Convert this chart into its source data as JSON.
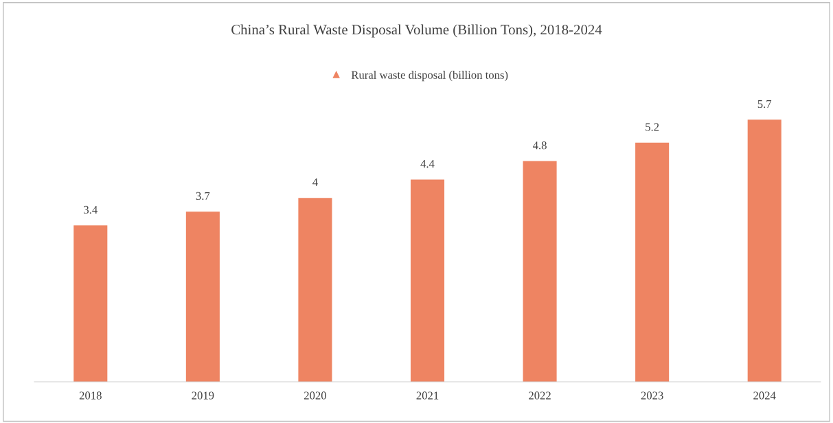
{
  "chart_data": {
    "type": "bar",
    "title": "China’s Rural Waste Disposal Volume (Billion Tons), 2018-2024",
    "categories": [
      "2018",
      "2019",
      "2020",
      "2021",
      "2022",
      "2023",
      "2024"
    ],
    "series": [
      {
        "name": "Rural waste disposal (billion tons)",
        "color": "#ee8462",
        "values": [
          3.4,
          3.7,
          4,
          4.4,
          4.8,
          5.2,
          5.7
        ]
      }
    ],
    "data_labels": true,
    "legend": "top",
    "grid": false
  }
}
